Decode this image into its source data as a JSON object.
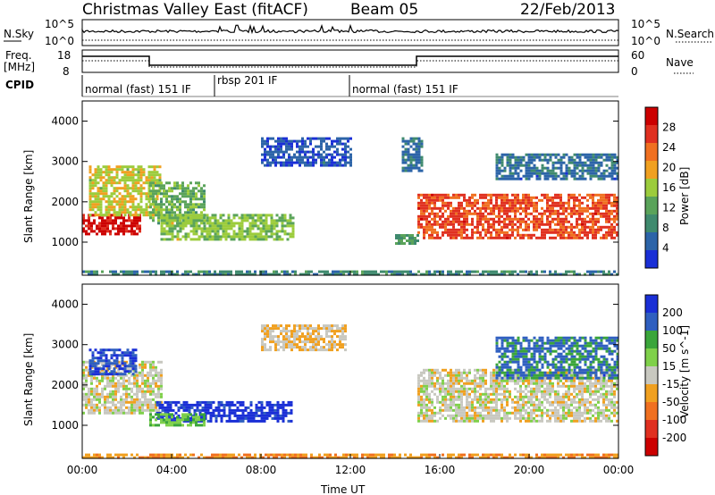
{
  "header": {
    "title": "Christmas Valley East (fitACF)",
    "beam": "Beam 05",
    "date": "22/Feb/2013"
  },
  "status_panels": {
    "nsky": {
      "label": "N.Sky",
      "ticks": [
        "10^5",
        "10^0"
      ]
    },
    "nsearch": {
      "label": "N.Search",
      "ticks": [
        "10^5",
        "10^0"
      ]
    },
    "freq": {
      "label1": "Freq.",
      "label2": "[MHz]",
      "ticks": [
        "18",
        "8"
      ]
    },
    "nave": {
      "label": "Nave",
      "ticks": [
        "60",
        "0"
      ]
    },
    "cpid": {
      "label": "CPID",
      "segments": [
        "normal (fast) 151 IF",
        "rbsp 201 IF",
        "normal (fast) 151 IF"
      ]
    }
  },
  "x_axis": {
    "label": "Time UT",
    "ticks": [
      "00:00",
      "04:00",
      "08:00",
      "12:00",
      "16:00",
      "20:00",
      "00:00"
    ]
  },
  "panels": {
    "power": {
      "ylabel": "Slant Range [km]",
      "yticks": [
        "1000",
        "2000",
        "3000",
        "4000"
      ],
      "colorbar_label": "Power [dB]",
      "colorbar_ticks": [
        "4",
        "8",
        "12",
        "16",
        "20",
        "24",
        "28"
      ]
    },
    "velocity": {
      "ylabel": "Slant Range [km]",
      "yticks": [
        "1000",
        "2000",
        "3000",
        "4000"
      ],
      "colorbar_label": "Velocity [m s^-1]",
      "colorbar_ticks": [
        "200",
        "100",
        "50",
        "15",
        "-15",
        "-50",
        "-100",
        "-200"
      ]
    }
  },
  "colors": {
    "power_scale": [
      "#1a2fd6",
      "#2c64a8",
      "#3f8a6e",
      "#5aa35a",
      "#9ccc3c",
      "#f0a020",
      "#f07020",
      "#e03020",
      "#cc0000"
    ],
    "velocity_scale": [
      "#1a2fd6",
      "#2f5fc0",
      "#3aa53a",
      "#7fd04a",
      "#c8c8c0",
      "#f0a020",
      "#f07020",
      "#e03020",
      "#cc0000"
    ]
  },
  "chart_data": [
    {
      "type": "heatmap",
      "title": "Power",
      "x_unit": "hours UT",
      "y_unit": "km",
      "xlim": [
        0,
        24
      ],
      "ylim": [
        180,
        4500
      ],
      "zlim": [
        0,
        30
      ],
      "features": [
        {
          "x": [
            0.0,
            2.6
          ],
          "y": [
            1200,
            1700
          ],
          "z": 28
        },
        {
          "x": [
            0.3,
            3.5
          ],
          "y": [
            1700,
            2900
          ],
          "z": 16
        },
        {
          "x": [
            3.0,
            5.5
          ],
          "y": [
            1500,
            2500
          ],
          "z": 12
        },
        {
          "x": [
            3.5,
            9.4
          ],
          "y": [
            1100,
            1700
          ],
          "z": 14
        },
        {
          "x": [
            8.0,
            12.0
          ],
          "y": [
            2900,
            3600
          ],
          "z": 4
        },
        {
          "x": [
            14.0,
            15.0
          ],
          "y": [
            1000,
            1200
          ],
          "z": 10
        },
        {
          "x": [
            14.3,
            15.2
          ],
          "y": [
            2800,
            3600
          ],
          "z": 6
        },
        {
          "x": [
            15.0,
            24.0
          ],
          "y": [
            1100,
            2200
          ],
          "z": 24
        },
        {
          "x": [
            18.5,
            24.0
          ],
          "y": [
            2600,
            3200
          ],
          "z": 6
        },
        {
          "x": [
            0.0,
            24.0
          ],
          "y": [
            180,
            300
          ],
          "z": 8
        }
      ]
    },
    {
      "type": "heatmap",
      "title": "Velocity",
      "x_unit": "hours UT",
      "y_unit": "km",
      "xlim": [
        0,
        24
      ],
      "ylim": [
        180,
        4500
      ],
      "zlim": [
        -200,
        200
      ],
      "features": [
        {
          "x": [
            0.0,
            3.5
          ],
          "y": [
            1300,
            2600
          ],
          "z": 0
        },
        {
          "x": [
            0.3,
            2.4
          ],
          "y": [
            2300,
            2900
          ],
          "z": 150
        },
        {
          "x": [
            3.3,
            9.4
          ],
          "y": [
            1100,
            1600
          ],
          "z": 180
        },
        {
          "x": [
            3.0,
            5.5
          ],
          "y": [
            1000,
            1300
          ],
          "z": 60
        },
        {
          "x": [
            8.0,
            11.8
          ],
          "y": [
            2900,
            3500
          ],
          "z": -20
        },
        {
          "x": [
            15.0,
            24.0
          ],
          "y": [
            1100,
            2400
          ],
          "z": 0
        },
        {
          "x": [
            18.5,
            24.0
          ],
          "y": [
            2200,
            3200
          ],
          "z": 120
        },
        {
          "x": [
            0.0,
            24.0
          ],
          "y": [
            180,
            300
          ],
          "z": -60
        }
      ]
    }
  ]
}
